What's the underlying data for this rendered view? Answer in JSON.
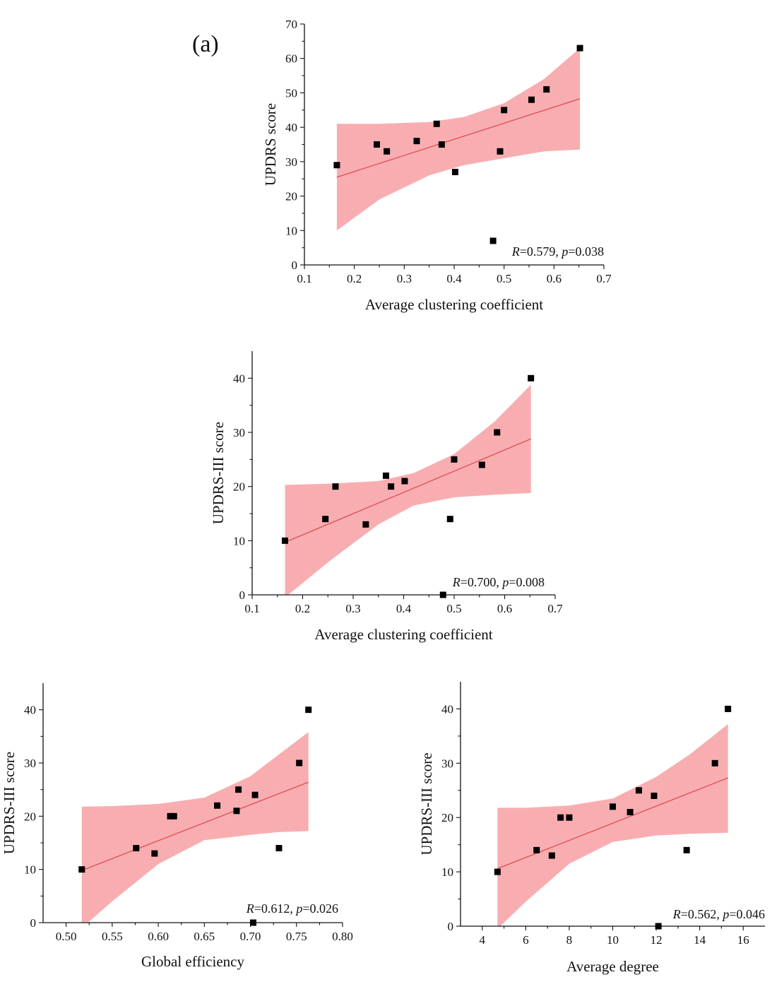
{
  "panel_label": "(a)",
  "colors": {
    "band": "#f58f93",
    "fit_line": "#e04b52",
    "points": "#000000"
  },
  "chart_data": [
    {
      "type": "scatter",
      "title": "",
      "xlabel": "Average clustering coefficient",
      "ylabel": "UPDRS score",
      "xlim": [
        0.1,
        0.7
      ],
      "ylim": [
        0,
        70
      ],
      "xticks": [
        0.1,
        0.2,
        0.3,
        0.4,
        0.5,
        0.6,
        0.7
      ],
      "yticks": [
        0,
        10,
        20,
        30,
        40,
        50,
        60,
        70
      ],
      "xtick_labels": [
        "0.1",
        "0.2",
        "0.3",
        "0.4",
        "0.5",
        "0.6",
        "0.7"
      ],
      "ytick_labels": [
        "0",
        "10",
        "20",
        "30",
        "40",
        "50",
        "60",
        "70"
      ],
      "stats_R": "0.579",
      "stats_p": "0.038",
      "x": [
        0.165,
        0.245,
        0.265,
        0.325,
        0.365,
        0.375,
        0.402,
        0.478,
        0.492,
        0.5,
        0.555,
        0.585,
        0.652
      ],
      "y": [
        29,
        35,
        33,
        36,
        41,
        35,
        27,
        7,
        33,
        45,
        48,
        51,
        63
      ],
      "fit": {
        "x": [
          0.165,
          0.652
        ],
        "y": [
          25.5,
          48.3
        ]
      },
      "band": {
        "x": [
          0.165,
          0.25,
          0.35,
          0.42,
          0.5,
          0.58,
          0.652
        ],
        "lower": [
          10,
          19,
          26,
          29,
          31,
          33,
          33.5
        ],
        "upper": [
          41,
          41,
          41.5,
          43,
          47,
          54,
          63
        ]
      }
    },
    {
      "type": "scatter",
      "title": "",
      "xlabel": "Average clustering coefficient",
      "ylabel": "UPDRS-III score",
      "xlim": [
        0.1,
        0.7
      ],
      "ylim": [
        0,
        45
      ],
      "xticks": [
        0.1,
        0.2,
        0.3,
        0.4,
        0.5,
        0.6,
        0.7
      ],
      "yticks": [
        0,
        10,
        20,
        30,
        40
      ],
      "xtick_labels": [
        "0.1",
        "0.2",
        "0.3",
        "0.4",
        "0.5",
        "0.6",
        "0.7"
      ],
      "ytick_labels": [
        "0",
        "10",
        "20",
        "30",
        "40"
      ],
      "stats_R": "0.700",
      "stats_p": "0.008",
      "x": [
        0.165,
        0.245,
        0.265,
        0.325,
        0.365,
        0.375,
        0.402,
        0.478,
        0.492,
        0.5,
        0.555,
        0.585,
        0.652
      ],
      "y": [
        10,
        14,
        20,
        13,
        22,
        20,
        21,
        0,
        14,
        25,
        24,
        30,
        40
      ],
      "fit": {
        "x": [
          0.165,
          0.652
        ],
        "y": [
          9.7,
          28.8
        ]
      },
      "band": {
        "x": [
          0.165,
          0.25,
          0.35,
          0.42,
          0.5,
          0.58,
          0.652
        ],
        "lower": [
          -0.5,
          6,
          13,
          16.5,
          18,
          18.5,
          18.8
        ],
        "upper": [
          20.3,
          20.5,
          21,
          22.5,
          26,
          32,
          38.8
        ]
      }
    },
    {
      "type": "scatter",
      "title": "",
      "xlabel": "Global efficiency",
      "ylabel": "UPDRS-III score",
      "xlim": [
        0.475,
        0.8
      ],
      "ylim": [
        0,
        45
      ],
      "xticks": [
        0.5,
        0.55,
        0.6,
        0.65,
        0.7,
        0.75,
        0.8
      ],
      "yticks": [
        0,
        10,
        20,
        30,
        40
      ],
      "xtick_labels": [
        "0.50",
        "0.55",
        "0.60",
        "0.65",
        "0.70",
        "0.75",
        "0.80"
      ],
      "ytick_labels": [
        "0",
        "10",
        "20",
        "30",
        "40"
      ],
      "stats_R": "0.612",
      "stats_p": "0.026",
      "x": [
        0.517,
        0.576,
        0.596,
        0.613,
        0.617,
        0.664,
        0.685,
        0.687,
        0.703,
        0.705,
        0.731,
        0.753,
        0.763
      ],
      "y": [
        10,
        14,
        13,
        20,
        20,
        22,
        21,
        25,
        0,
        24,
        14,
        30,
        40
      ],
      "fit": {
        "x": [
          0.517,
          0.763
        ],
        "y": [
          9.8,
          26.4
        ]
      },
      "band": {
        "x": [
          0.517,
          0.55,
          0.6,
          0.65,
          0.7,
          0.73,
          0.763
        ],
        "lower": [
          -1,
          4,
          11,
          15.5,
          16.5,
          17,
          17.2
        ],
        "upper": [
          21.8,
          21.9,
          22.3,
          23.5,
          27.5,
          31.5,
          35.8
        ]
      }
    },
    {
      "type": "scatter",
      "title": "",
      "xlabel": "Average degree",
      "ylabel": "UPDRS-III score",
      "xlim": [
        3,
        17
      ],
      "ylim": [
        0,
        45
      ],
      "xticks": [
        4,
        6,
        8,
        10,
        12,
        14,
        16
      ],
      "yticks": [
        0,
        10,
        20,
        30,
        40
      ],
      "xtick_labels": [
        "4",
        "6",
        "8",
        "10",
        "12",
        "14",
        "16"
      ],
      "ytick_labels": [
        "0",
        "10",
        "20",
        "30",
        "40"
      ],
      "stats_R": "0.562",
      "stats_p": "0.046",
      "x": [
        4.7,
        6.5,
        7.2,
        7.6,
        8.0,
        10.0,
        10.8,
        11.2,
        11.9,
        12.1,
        13.4,
        14.7,
        15.3
      ],
      "y": [
        10,
        14,
        13,
        20,
        20,
        22,
        21,
        25,
        24,
        0,
        14,
        30,
        40
      ],
      "fit": {
        "x": [
          4.7,
          15.3
        ],
        "y": [
          10.6,
          27.3
        ]
      },
      "band": {
        "x": [
          4.7,
          6,
          8,
          10,
          12,
          13.5,
          15.3
        ],
        "lower": [
          -0.5,
          4.5,
          11.5,
          15.5,
          16.7,
          17,
          17.2
        ],
        "upper": [
          21.8,
          21.8,
          22.2,
          23.5,
          27.5,
          31.5,
          37.2
        ]
      }
    }
  ]
}
